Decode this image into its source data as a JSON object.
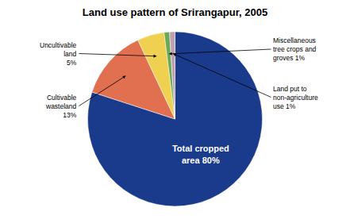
{
  "chart_data": {
    "type": "pie",
    "title": "Land use pattern of Srirangapur, 2005",
    "categories": [
      "Total cropped\narea 80%",
      "Cultivable\nwasteland\n13%",
      "Uncultivable\nland\n5%",
      "Miscellaneous\ntree crops and\ngroves 1%",
      "Land put to\nnon-agriculture\nuse 1%"
    ],
    "values": [
      80,
      13,
      5,
      1,
      1
    ],
    "colors": [
      "#1a3a8c",
      "#e07050",
      "#f0d050",
      "#6aaa55",
      "#c0a0b0"
    ]
  }
}
